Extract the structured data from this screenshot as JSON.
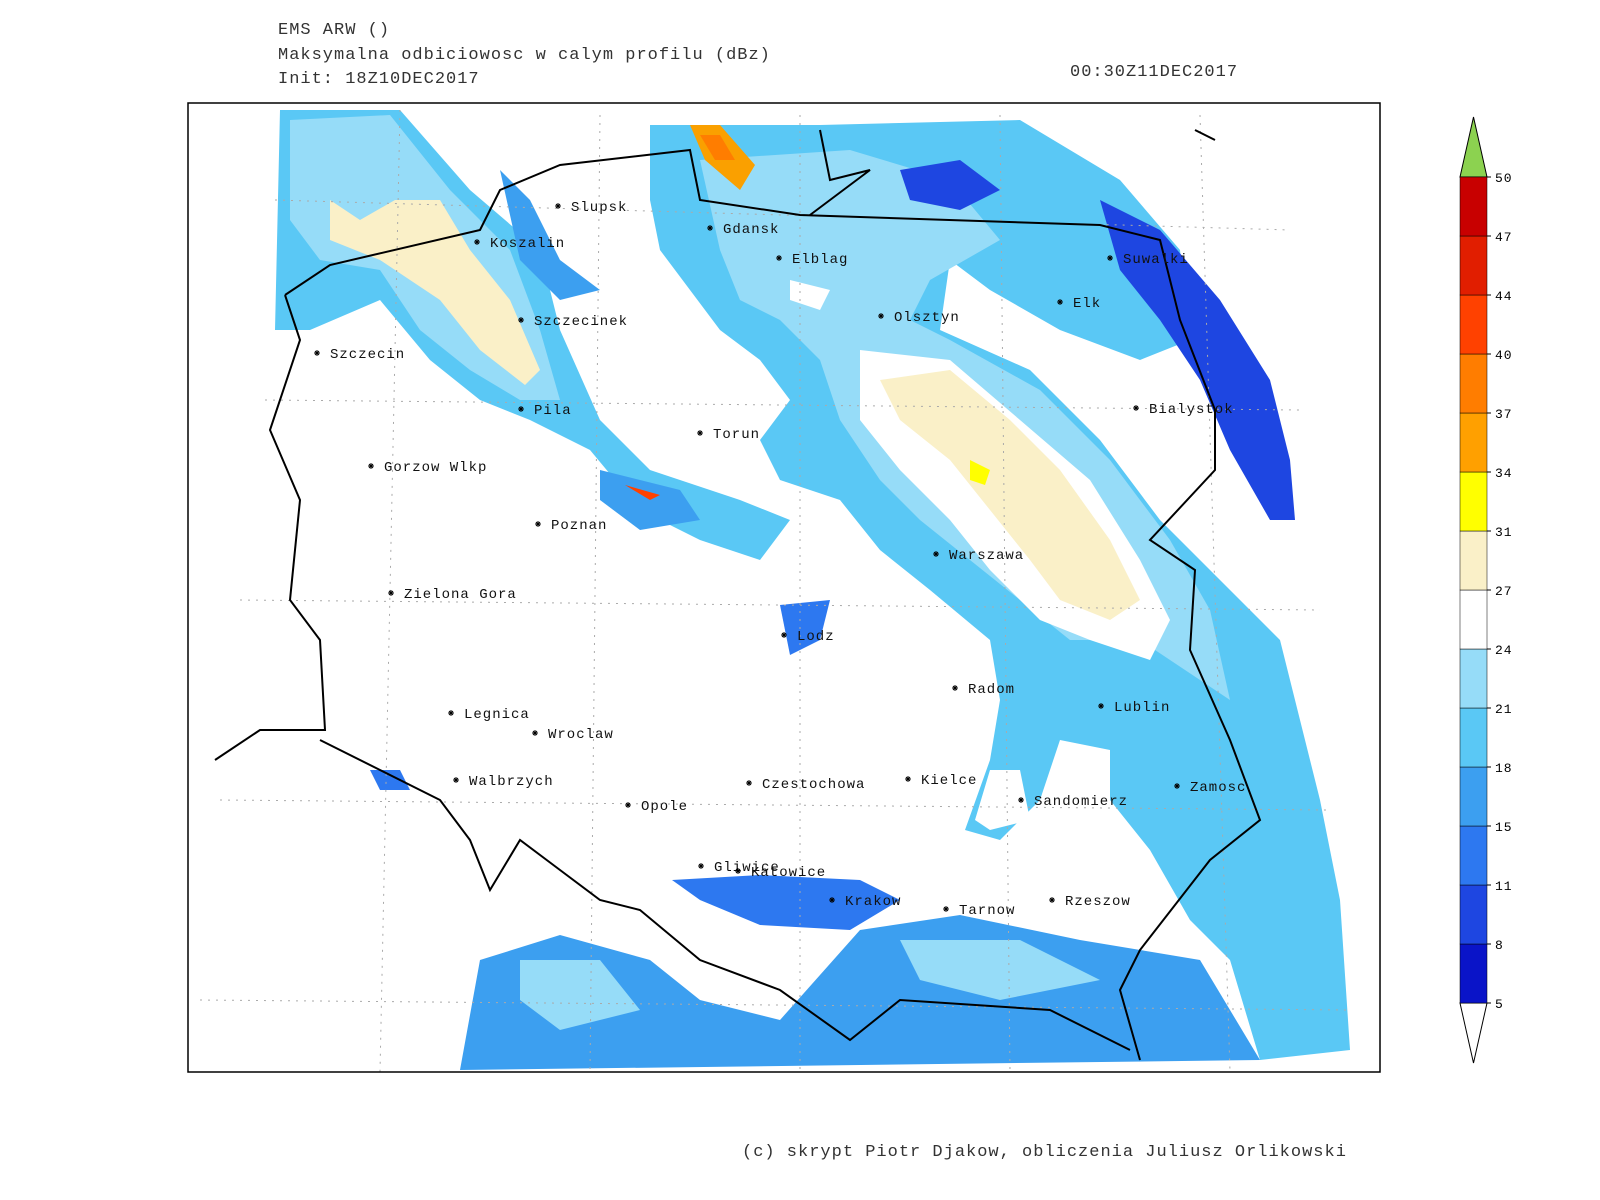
{
  "header": {
    "title": "EMS ARW ()",
    "subtitle": "Maksymalna odbiciowosc w calym profilu (dBz)",
    "init": "Init: 18Z10DEC2017",
    "valid": "00:30Z11DEC2017"
  },
  "cities": [
    "Slupsk",
    "Koszalin",
    "Gdansk",
    "Elblag",
    "Suwalki",
    "Elk",
    "Olsztyn",
    "Szczecinek",
    "Szczecin",
    "Bialystok",
    "Pila",
    "Torun",
    "Gorzow Wlkp",
    "Poznan",
    "Warszawa",
    "Zielona Gora",
    "Lodz",
    "Radom",
    "Lublin",
    "Legnica",
    "Wroclaw",
    "Walbrzych",
    "Czestochowa",
    "Kielce",
    "Zamosc",
    "Sandomierz",
    "Opole",
    "Gliwice",
    "Katowice",
    "Krakow",
    "Tarnow",
    "Rzeszow"
  ],
  "colorbar": {
    "levels": [
      5,
      8,
      11,
      15,
      18,
      21,
      24,
      27,
      31,
      34,
      37,
      40,
      44,
      47,
      50
    ],
    "colors": [
      "#0a14c8",
      "#1e46e1",
      "#2d78f0",
      "#3c9ff0",
      "#5ac8f5",
      "#96dcf8",
      "#ffffff",
      "#faf0c8",
      "#ffff00",
      "#ffa000",
      "#ff7d00",
      "#ff4100",
      "#e11e00",
      "#c80000"
    ],
    "below": "#ffffff",
    "above": "#8cd250"
  },
  "footer": "(c) skrypt Piotr Djakow, obliczenia Juliusz Orlikowski"
}
